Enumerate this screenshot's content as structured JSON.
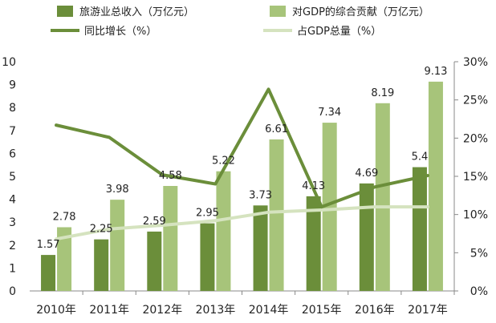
{
  "chart_data": {
    "type": "bar",
    "categories": [
      "2010年",
      "2011年",
      "2012年",
      "2013年",
      "2014年",
      "2015年",
      "2016年",
      "2017年"
    ],
    "series": [
      {
        "name": "旅游业总收入（万亿元）",
        "type": "bar",
        "axis": "left",
        "color": "#6b8e3a",
        "values": [
          1.57,
          2.25,
          2.59,
          2.95,
          3.73,
          4.13,
          4.69,
          5.4
        ],
        "labels": [
          "1.57",
          "2.25",
          "2.59",
          "2.95",
          "3.73",
          "4.13",
          "4.69",
          "5.4"
        ]
      },
      {
        "name": "对GDP的综合贡献（万亿元）",
        "type": "bar",
        "axis": "left",
        "color": "#a7c47a",
        "values": [
          2.78,
          3.98,
          4.58,
          5.22,
          6.61,
          7.34,
          8.19,
          9.13
        ],
        "labels": [
          "2.78",
          "3.98",
          "4.58",
          "5.22",
          "6.61",
          "7.34",
          "8.19",
          "9.13"
        ]
      },
      {
        "name": "同比增长（%）",
        "type": "line",
        "axis": "right",
        "color": "#6b8e3a",
        "values": [
          21.7,
          20.1,
          15.2,
          14,
          26.4,
          11,
          13.6,
          15.1
        ]
      },
      {
        "name": "占GDP总量（%）",
        "type": "line",
        "axis": "right",
        "color": "#d5e3bf",
        "values": [
          6.8,
          8.1,
          8.6,
          9.2,
          10.3,
          10.6,
          11,
          11
        ]
      }
    ],
    "y_left": {
      "min": 0,
      "max": 10,
      "ticks": [
        "0",
        "1",
        "2",
        "3",
        "4",
        "5",
        "6",
        "7",
        "8",
        "9",
        "10"
      ]
    },
    "y_right": {
      "min": 0,
      "max": 30,
      "ticks": [
        "0%",
        "5%",
        "10%",
        "15%",
        "20%",
        "25%",
        "30%"
      ]
    },
    "legend_position": "top",
    "grid": false
  }
}
